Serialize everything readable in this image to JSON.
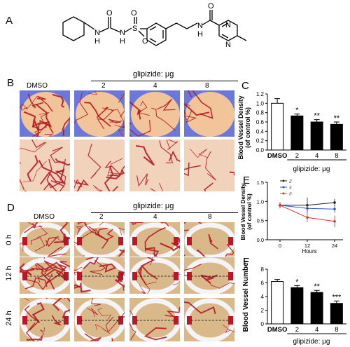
{
  "panels": {
    "A": "A",
    "B": "B",
    "C": "C",
    "D": "D",
    "E": "E",
    "F": "F"
  },
  "panel_b": {
    "header": "glipizide: μg",
    "columns": [
      "DMSO",
      "2",
      "4",
      "8"
    ]
  },
  "panel_d": {
    "header": "glipizide: μg",
    "columns": [
      "DMSO",
      "2",
      "4",
      "8"
    ],
    "rows": [
      "0 h",
      "12 h",
      "24 h"
    ]
  },
  "chart_data": [
    {
      "panel": "C",
      "type": "bar",
      "categories": [
        "DMSO",
        "2",
        "4",
        "8"
      ],
      "values": [
        1.0,
        0.73,
        0.6,
        0.55
      ],
      "errors": [
        0.1,
        0.04,
        0.05,
        0.05
      ],
      "significance": [
        "",
        "*",
        "**",
        "**"
      ],
      "ylabel": "Blood Vessel Density\n(of control %)",
      "xlabel": "glipizide: μg",
      "ylim": [
        0,
        1.2
      ],
      "yticks": [
        "0.0",
        "0.2",
        "0.4",
        "0.6",
        "0.8",
        "1.0",
        "1.2"
      ],
      "bar_colors": [
        "#ffffff",
        "#000000",
        "#000000",
        "#000000"
      ]
    },
    {
      "panel": "E",
      "type": "line",
      "x": [
        0,
        12,
        24
      ],
      "xticks": [
        "0",
        "12",
        "24"
      ],
      "xlabel": "Hours",
      "ylabel": "Blood Vessel Density\n(of control %)",
      "ylim": [
        0,
        1.5
      ],
      "yticks": [
        "0.0",
        "0.5",
        "1.0",
        "1.5"
      ],
      "series": [
        {
          "name": "2",
          "color": "#222222",
          "values": [
            0.9,
            0.9,
            0.97
          ],
          "errors": [
            0.08,
            0.2,
            0.1
          ]
        },
        {
          "name": "4",
          "color": "#3355cc",
          "values": [
            0.9,
            0.82,
            0.8
          ],
          "errors": [
            0.06,
            0.08,
            0.1
          ]
        },
        {
          "name": "8",
          "color": "#e03030",
          "values": [
            0.9,
            0.58,
            0.48
          ],
          "errors": [
            0.06,
            0.12,
            0.15
          ]
        }
      ]
    },
    {
      "panel": "F",
      "type": "bar",
      "categories": [
        "DMSO",
        "2",
        "4",
        "8"
      ],
      "values": [
        6.2,
        5.3,
        4.6,
        3.0
      ],
      "errors": [
        0.3,
        0.3,
        0.3,
        0.35
      ],
      "significance": [
        "",
        "*",
        "**",
        "***"
      ],
      "ylabel": "Blood Vessel Number",
      "xlabel": "glipizide: μg",
      "ylim": [
        0,
        8
      ],
      "yticks": [
        "0",
        "2",
        "4",
        "6",
        "8"
      ],
      "bar_colors": [
        "#ffffff",
        "#000000",
        "#000000",
        "#000000"
      ]
    }
  ],
  "structure": {
    "atoms": [
      "O",
      "O",
      "S",
      "O",
      "N",
      "N",
      "N",
      "N",
      "N",
      "O",
      "H",
      "H",
      "H"
    ]
  }
}
